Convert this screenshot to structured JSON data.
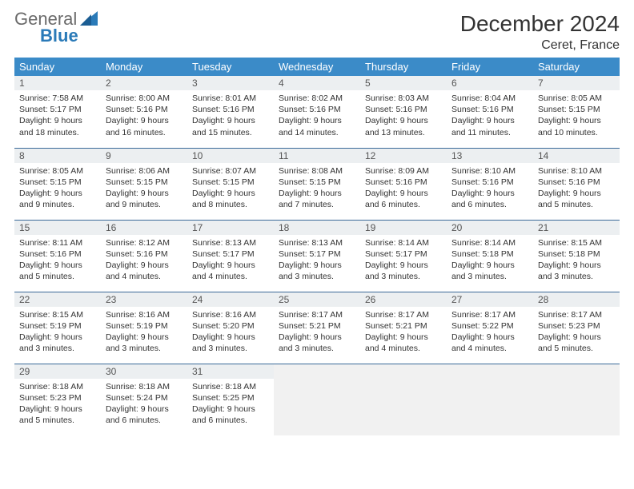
{
  "logo": {
    "line1": "General",
    "line2": "Blue"
  },
  "title": "December 2024",
  "location": "Ceret, France",
  "header_bg": "#3b8bc8",
  "weekdays": [
    "Sunday",
    "Monday",
    "Tuesday",
    "Wednesday",
    "Thursday",
    "Friday",
    "Saturday"
  ],
  "days": {
    "1": {
      "sunrise": "Sunrise: 7:58 AM",
      "sunset": "Sunset: 5:17 PM",
      "daylight1": "Daylight: 9 hours",
      "daylight2": "and 18 minutes."
    },
    "2": {
      "sunrise": "Sunrise: 8:00 AM",
      "sunset": "Sunset: 5:16 PM",
      "daylight1": "Daylight: 9 hours",
      "daylight2": "and 16 minutes."
    },
    "3": {
      "sunrise": "Sunrise: 8:01 AM",
      "sunset": "Sunset: 5:16 PM",
      "daylight1": "Daylight: 9 hours",
      "daylight2": "and 15 minutes."
    },
    "4": {
      "sunrise": "Sunrise: 8:02 AM",
      "sunset": "Sunset: 5:16 PM",
      "daylight1": "Daylight: 9 hours",
      "daylight2": "and 14 minutes."
    },
    "5": {
      "sunrise": "Sunrise: 8:03 AM",
      "sunset": "Sunset: 5:16 PM",
      "daylight1": "Daylight: 9 hours",
      "daylight2": "and 13 minutes."
    },
    "6": {
      "sunrise": "Sunrise: 8:04 AM",
      "sunset": "Sunset: 5:16 PM",
      "daylight1": "Daylight: 9 hours",
      "daylight2": "and 11 minutes."
    },
    "7": {
      "sunrise": "Sunrise: 8:05 AM",
      "sunset": "Sunset: 5:15 PM",
      "daylight1": "Daylight: 9 hours",
      "daylight2": "and 10 minutes."
    },
    "8": {
      "sunrise": "Sunrise: 8:05 AM",
      "sunset": "Sunset: 5:15 PM",
      "daylight1": "Daylight: 9 hours",
      "daylight2": "and 9 minutes."
    },
    "9": {
      "sunrise": "Sunrise: 8:06 AM",
      "sunset": "Sunset: 5:15 PM",
      "daylight1": "Daylight: 9 hours",
      "daylight2": "and 9 minutes."
    },
    "10": {
      "sunrise": "Sunrise: 8:07 AM",
      "sunset": "Sunset: 5:15 PM",
      "daylight1": "Daylight: 9 hours",
      "daylight2": "and 8 minutes."
    },
    "11": {
      "sunrise": "Sunrise: 8:08 AM",
      "sunset": "Sunset: 5:15 PM",
      "daylight1": "Daylight: 9 hours",
      "daylight2": "and 7 minutes."
    },
    "12": {
      "sunrise": "Sunrise: 8:09 AM",
      "sunset": "Sunset: 5:16 PM",
      "daylight1": "Daylight: 9 hours",
      "daylight2": "and 6 minutes."
    },
    "13": {
      "sunrise": "Sunrise: 8:10 AM",
      "sunset": "Sunset: 5:16 PM",
      "daylight1": "Daylight: 9 hours",
      "daylight2": "and 6 minutes."
    },
    "14": {
      "sunrise": "Sunrise: 8:10 AM",
      "sunset": "Sunset: 5:16 PM",
      "daylight1": "Daylight: 9 hours",
      "daylight2": "and 5 minutes."
    },
    "15": {
      "sunrise": "Sunrise: 8:11 AM",
      "sunset": "Sunset: 5:16 PM",
      "daylight1": "Daylight: 9 hours",
      "daylight2": "and 5 minutes."
    },
    "16": {
      "sunrise": "Sunrise: 8:12 AM",
      "sunset": "Sunset: 5:16 PM",
      "daylight1": "Daylight: 9 hours",
      "daylight2": "and 4 minutes."
    },
    "17": {
      "sunrise": "Sunrise: 8:13 AM",
      "sunset": "Sunset: 5:17 PM",
      "daylight1": "Daylight: 9 hours",
      "daylight2": "and 4 minutes."
    },
    "18": {
      "sunrise": "Sunrise: 8:13 AM",
      "sunset": "Sunset: 5:17 PM",
      "daylight1": "Daylight: 9 hours",
      "daylight2": "and 3 minutes."
    },
    "19": {
      "sunrise": "Sunrise: 8:14 AM",
      "sunset": "Sunset: 5:17 PM",
      "daylight1": "Daylight: 9 hours",
      "daylight2": "and 3 minutes."
    },
    "20": {
      "sunrise": "Sunrise: 8:14 AM",
      "sunset": "Sunset: 5:18 PM",
      "daylight1": "Daylight: 9 hours",
      "daylight2": "and 3 minutes."
    },
    "21": {
      "sunrise": "Sunrise: 8:15 AM",
      "sunset": "Sunset: 5:18 PM",
      "daylight1": "Daylight: 9 hours",
      "daylight2": "and 3 minutes."
    },
    "22": {
      "sunrise": "Sunrise: 8:15 AM",
      "sunset": "Sunset: 5:19 PM",
      "daylight1": "Daylight: 9 hours",
      "daylight2": "and 3 minutes."
    },
    "23": {
      "sunrise": "Sunrise: 8:16 AM",
      "sunset": "Sunset: 5:19 PM",
      "daylight1": "Daylight: 9 hours",
      "daylight2": "and 3 minutes."
    },
    "24": {
      "sunrise": "Sunrise: 8:16 AM",
      "sunset": "Sunset: 5:20 PM",
      "daylight1": "Daylight: 9 hours",
      "daylight2": "and 3 minutes."
    },
    "25": {
      "sunrise": "Sunrise: 8:17 AM",
      "sunset": "Sunset: 5:21 PM",
      "daylight1": "Daylight: 9 hours",
      "daylight2": "and 3 minutes."
    },
    "26": {
      "sunrise": "Sunrise: 8:17 AM",
      "sunset": "Sunset: 5:21 PM",
      "daylight1": "Daylight: 9 hours",
      "daylight2": "and 4 minutes."
    },
    "27": {
      "sunrise": "Sunrise: 8:17 AM",
      "sunset": "Sunset: 5:22 PM",
      "daylight1": "Daylight: 9 hours",
      "daylight2": "and 4 minutes."
    },
    "28": {
      "sunrise": "Sunrise: 8:17 AM",
      "sunset": "Sunset: 5:23 PM",
      "daylight1": "Daylight: 9 hours",
      "daylight2": "and 5 minutes."
    },
    "29": {
      "sunrise": "Sunrise: 8:18 AM",
      "sunset": "Sunset: 5:23 PM",
      "daylight1": "Daylight: 9 hours",
      "daylight2": "and 5 minutes."
    },
    "30": {
      "sunrise": "Sunrise: 8:18 AM",
      "sunset": "Sunset: 5:24 PM",
      "daylight1": "Daylight: 9 hours",
      "daylight2": "and 6 minutes."
    },
    "31": {
      "sunrise": "Sunrise: 8:18 AM",
      "sunset": "Sunset: 5:25 PM",
      "daylight1": "Daylight: 9 hours",
      "daylight2": "and 6 minutes."
    }
  },
  "daynums": {
    "1": "1",
    "2": "2",
    "3": "3",
    "4": "4",
    "5": "5",
    "6": "6",
    "7": "7",
    "8": "8",
    "9": "9",
    "10": "10",
    "11": "11",
    "12": "12",
    "13": "13",
    "14": "14",
    "15": "15",
    "16": "16",
    "17": "17",
    "18": "18",
    "19": "19",
    "20": "20",
    "21": "21",
    "22": "22",
    "23": "23",
    "24": "24",
    "25": "25",
    "26": "26",
    "27": "27",
    "28": "28",
    "29": "29",
    "30": "30",
    "31": "31"
  }
}
